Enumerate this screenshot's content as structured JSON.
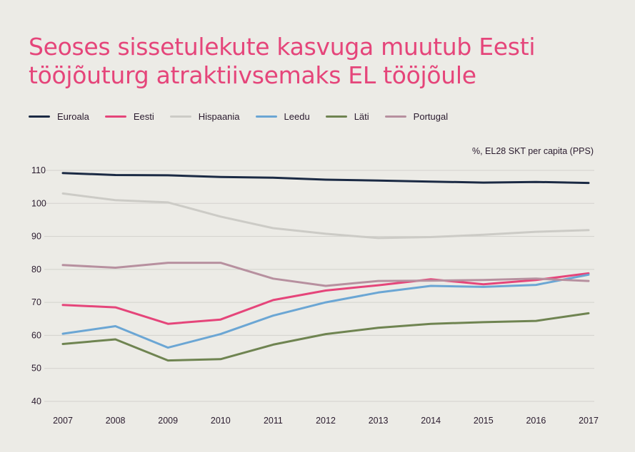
{
  "title_lines": [
    "Seoses sissetulekute kasvuga muutub Eesti",
    "tööjõuturg atraktiivsemaks EL tööjõule"
  ],
  "colors": {
    "title": "#e5457a",
    "text": "#2a1b2e",
    "grid": "#d3d2cd",
    "background": "#ecebe6"
  },
  "chart_data": {
    "type": "line",
    "unit_label": "%, EL28 SKT per capita (PPS)",
    "x": [
      "2007",
      "2008",
      "2009",
      "2010",
      "2011",
      "2012",
      "2013",
      "2014",
      "2015",
      "2016",
      "2017"
    ],
    "ylim": [
      40,
      110
    ],
    "yticks": [
      40,
      50,
      60,
      70,
      80,
      90,
      100,
      110
    ],
    "grid": true,
    "legend_position": "top",
    "series": [
      {
        "name": "Euroala",
        "color": "#1b2a44",
        "values": [
          109.2,
          108.6,
          108.5,
          108.0,
          107.8,
          107.2,
          106.9,
          106.6,
          106.3,
          106.5,
          106.2
        ]
      },
      {
        "name": "Eesti",
        "color": "#e5457a",
        "values": [
          69.2,
          68.5,
          63.5,
          64.8,
          70.7,
          73.6,
          75.2,
          77.0,
          75.5,
          76.8,
          78.8
        ]
      },
      {
        "name": "Hispaania",
        "color": "#cccbc6",
        "values": [
          103.0,
          101.0,
          100.3,
          96.0,
          92.5,
          90.8,
          89.5,
          89.8,
          90.5,
          91.4,
          91.9
        ]
      },
      {
        "name": "Leedu",
        "color": "#6ba6d4",
        "values": [
          60.5,
          62.8,
          56.3,
          60.4,
          66.0,
          70.0,
          73.0,
          75.0,
          74.7,
          75.3,
          78.4
        ]
      },
      {
        "name": "Läti",
        "color": "#6f8451",
        "values": [
          57.4,
          58.8,
          52.4,
          52.8,
          57.2,
          60.4,
          62.3,
          63.5,
          64.0,
          64.4,
          66.7
        ]
      },
      {
        "name": "Portugal",
        "color": "#b7909f",
        "values": [
          81.3,
          80.5,
          82.0,
          82.0,
          77.2,
          75.0,
          76.5,
          76.6,
          76.8,
          77.2,
          76.5
        ]
      }
    ]
  }
}
